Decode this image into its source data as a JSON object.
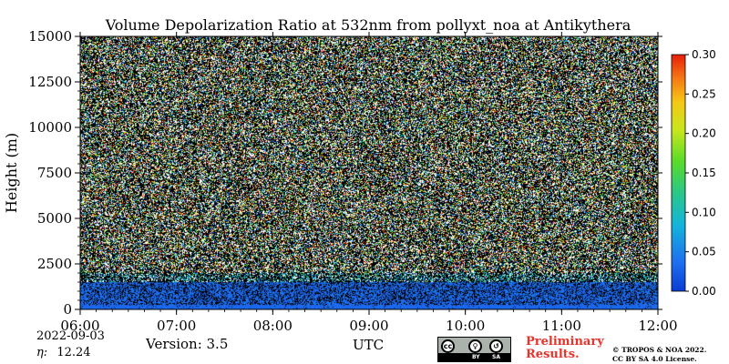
{
  "chart_data": {
    "type": "heatmap",
    "title": "Volume Depolarization Ratio at 532nm from pollyxt_noa at Antikythera",
    "ylabel": "Height (m)",
    "xlabel": "UTC",
    "xticks": [
      "06:00",
      "07:00",
      "08:00",
      "09:00",
      "10:00",
      "11:00",
      "12:00"
    ],
    "yticks": [
      "0",
      "2500",
      "5000",
      "7500",
      "10000",
      "12500",
      "15000"
    ],
    "ylim": [
      0,
      15000
    ],
    "xlim_hours": [
      6,
      12
    ],
    "colorbar": {
      "ticks": [
        "0.00",
        "0.05",
        "0.10",
        "0.15",
        "0.20",
        "0.25",
        "0.30"
      ],
      "range": [
        0.0,
        0.3
      ],
      "colormap": "jet-like (blue → cyan → green → yellow → orange → red)"
    },
    "observations": {
      "boundary_layer_top_m": 1500,
      "boundary_layer_depolarization": 0.02,
      "noise_above_m": 2000
    }
  },
  "footer": {
    "date": "2022-09-03",
    "eta_label": "η:",
    "eta_value": "12.24",
    "version": "Version: 3.5",
    "utc": "UTC",
    "preliminary_line1": "Preliminary",
    "preliminary_line2": "Results.",
    "copyright_line1": "© TROPOS & NOA 2022.",
    "copyright_line2": "CC BY SA 4.0 License.",
    "cc_labels": [
      "BY",
      "SA"
    ],
    "cc_icons": [
      "cc-icon",
      "person-icon",
      "share-alike-icon"
    ]
  },
  "colors": {
    "low": "#1a55e6",
    "mid": "#2fc860",
    "high": "#ff2a00",
    "preliminary": "#e8332a"
  }
}
